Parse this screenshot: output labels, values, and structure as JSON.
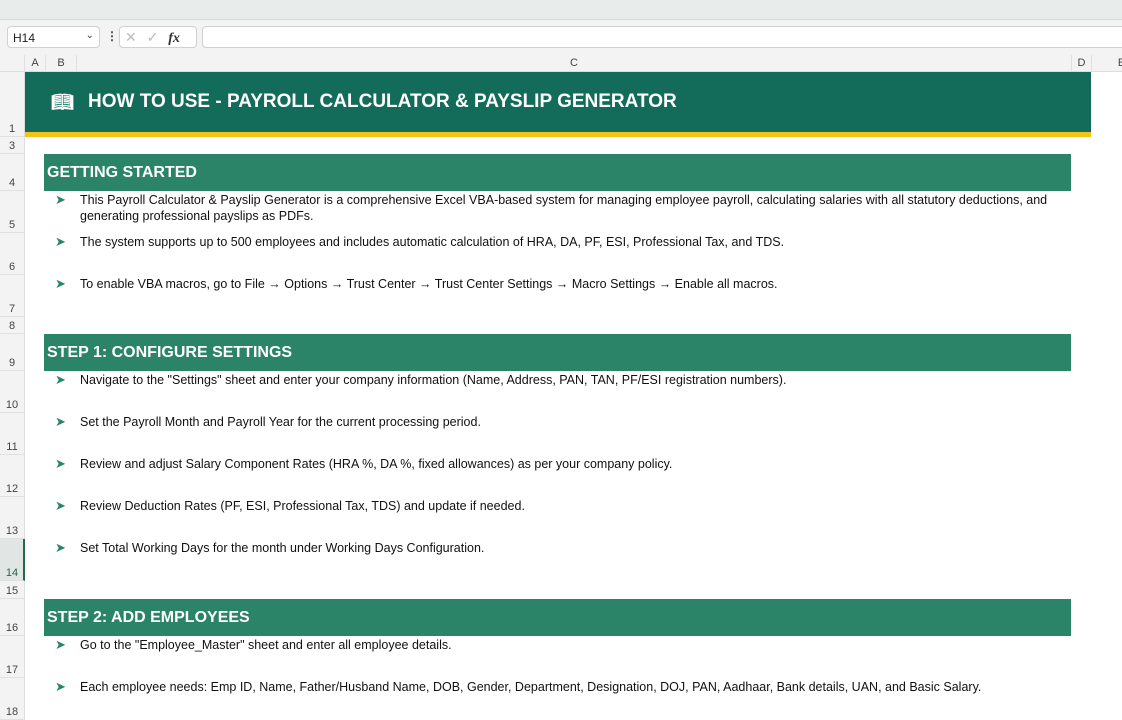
{
  "formula_bar": {
    "name_box": "H14",
    "cancel_icon": "✕",
    "enter_icon": "✓",
    "fx_label": "fx",
    "formula": ""
  },
  "columns": [
    "A",
    "B",
    "C",
    "D",
    "E"
  ],
  "rows": [
    "1",
    "3",
    "4",
    "5",
    "6",
    "7",
    "8",
    "9",
    "10",
    "11",
    "12",
    "13",
    "14",
    "15",
    "16",
    "17",
    "18"
  ],
  "selected_row": "14",
  "title": {
    "icon": "book-icon",
    "text": "HOW TO USE - PAYROLL CALCULATOR & PAYSLIP GENERATOR"
  },
  "sections": [
    {
      "heading": "GETTING STARTED",
      "items": [
        "This Payroll Calculator & Payslip Generator is a comprehensive Excel VBA-based system for managing employee payroll, calculating salaries with all statutory deductions, and generating professional payslips as PDFs.",
        "The system supports up to 500 employees and includes automatic calculation of HRA, DA, PF, ESI, Professional Tax, and TDS.",
        "To enable VBA macros, go to File → Options → Trust Center → Trust Center Settings → Macro Settings → Enable all macros."
      ]
    },
    {
      "heading": "STEP 1: CONFIGURE SETTINGS",
      "items": [
        "Navigate to the \"Settings\" sheet and enter your company information (Name, Address, PAN, TAN, PF/ESI registration numbers).",
        "Set the Payroll Month and Payroll Year for the current processing period.",
        "Review and adjust Salary Component Rates (HRA %, DA %, fixed allowances) as per your company policy.",
        "Review Deduction Rates (PF, ESI, Professional Tax, TDS) and update if needed.",
        "Set Total Working Days for the month under Working Days Configuration."
      ]
    },
    {
      "heading": "STEP 2: ADD EMPLOYEES",
      "items": [
        "Go to the \"Employee_Master\" sheet and enter all employee details.",
        "Each employee needs: Emp ID, Name, Father/Husband Name, DOB, Gender, Department, Designation, DOJ, PAN, Aadhaar, Bank details, UAN, and Basic Salary."
      ]
    }
  ],
  "colors": {
    "title_bg": "#136c5a",
    "accent_line": "#f2c318",
    "section_bg": "#2b8467",
    "bullet": "#2b8467"
  }
}
